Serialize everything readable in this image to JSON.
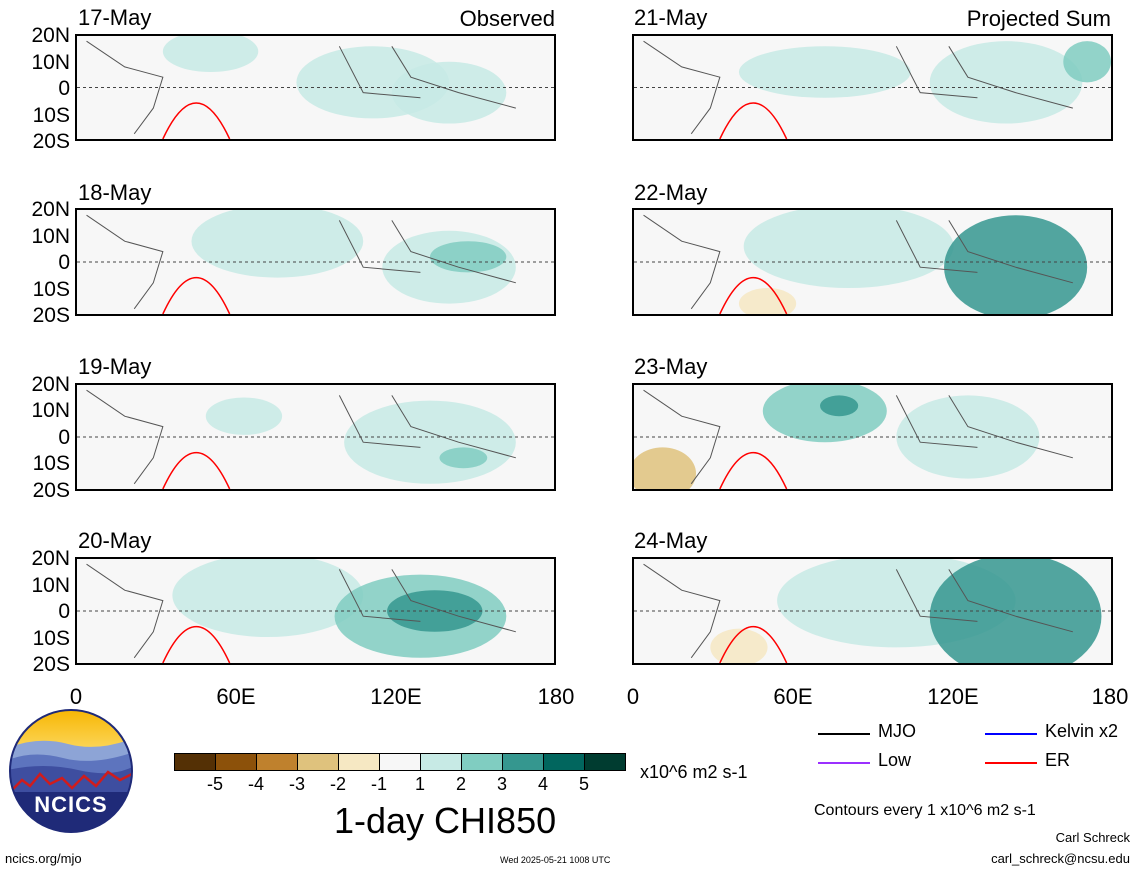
{
  "panels_left": [
    {
      "date": "17-May",
      "corner": "Observed"
    },
    {
      "date": "18-May",
      "corner": ""
    },
    {
      "date": "19-May",
      "corner": ""
    },
    {
      "date": "20-May",
      "corner": ""
    }
  ],
  "panels_right": [
    {
      "date": "21-May",
      "corner": "Projected Sum"
    },
    {
      "date": "22-May",
      "corner": ""
    },
    {
      "date": "23-May",
      "corner": ""
    },
    {
      "date": "24-May",
      "corner": ""
    }
  ],
  "lat_labels": [
    "20N",
    "10N",
    "0",
    "10S",
    "20S"
  ],
  "lon_labels": [
    "0",
    "60E",
    "120E",
    "180"
  ],
  "colorbar": {
    "colors": [
      "#543005",
      "#8c510a",
      "#bf812d",
      "#dfc27d",
      "#f6e8c3",
      "#f7f7f7",
      "#c7eae5",
      "#80cdc1",
      "#35978f",
      "#01665e",
      "#003c30"
    ],
    "ticks": [
      "-5",
      "-4",
      "-3",
      "-2",
      "-1",
      "1",
      "2",
      "3",
      "4",
      "5"
    ],
    "units": "x10^6 m2 s-1",
    "title": "1-day CHI850"
  },
  "legend": {
    "items": [
      {
        "label": "MJO",
        "color": "#000000"
      },
      {
        "label": "Kelvin x2",
        "color": "#0000ff"
      },
      {
        "label": "Low",
        "color": "#9b30ff"
      },
      {
        "label": "ER",
        "color": "#ff0000"
      }
    ],
    "contours_note": "Contours every 1 x10^6 m2 s-1"
  },
  "logo": {
    "text": "NCICS"
  },
  "footer": {
    "url": "ncics.org/mjo",
    "timestamp": "Wed 2025-05-21 1008 UTC",
    "author": "Carl Schreck",
    "email": "carl_schreck@ncsu.edu"
  }
}
